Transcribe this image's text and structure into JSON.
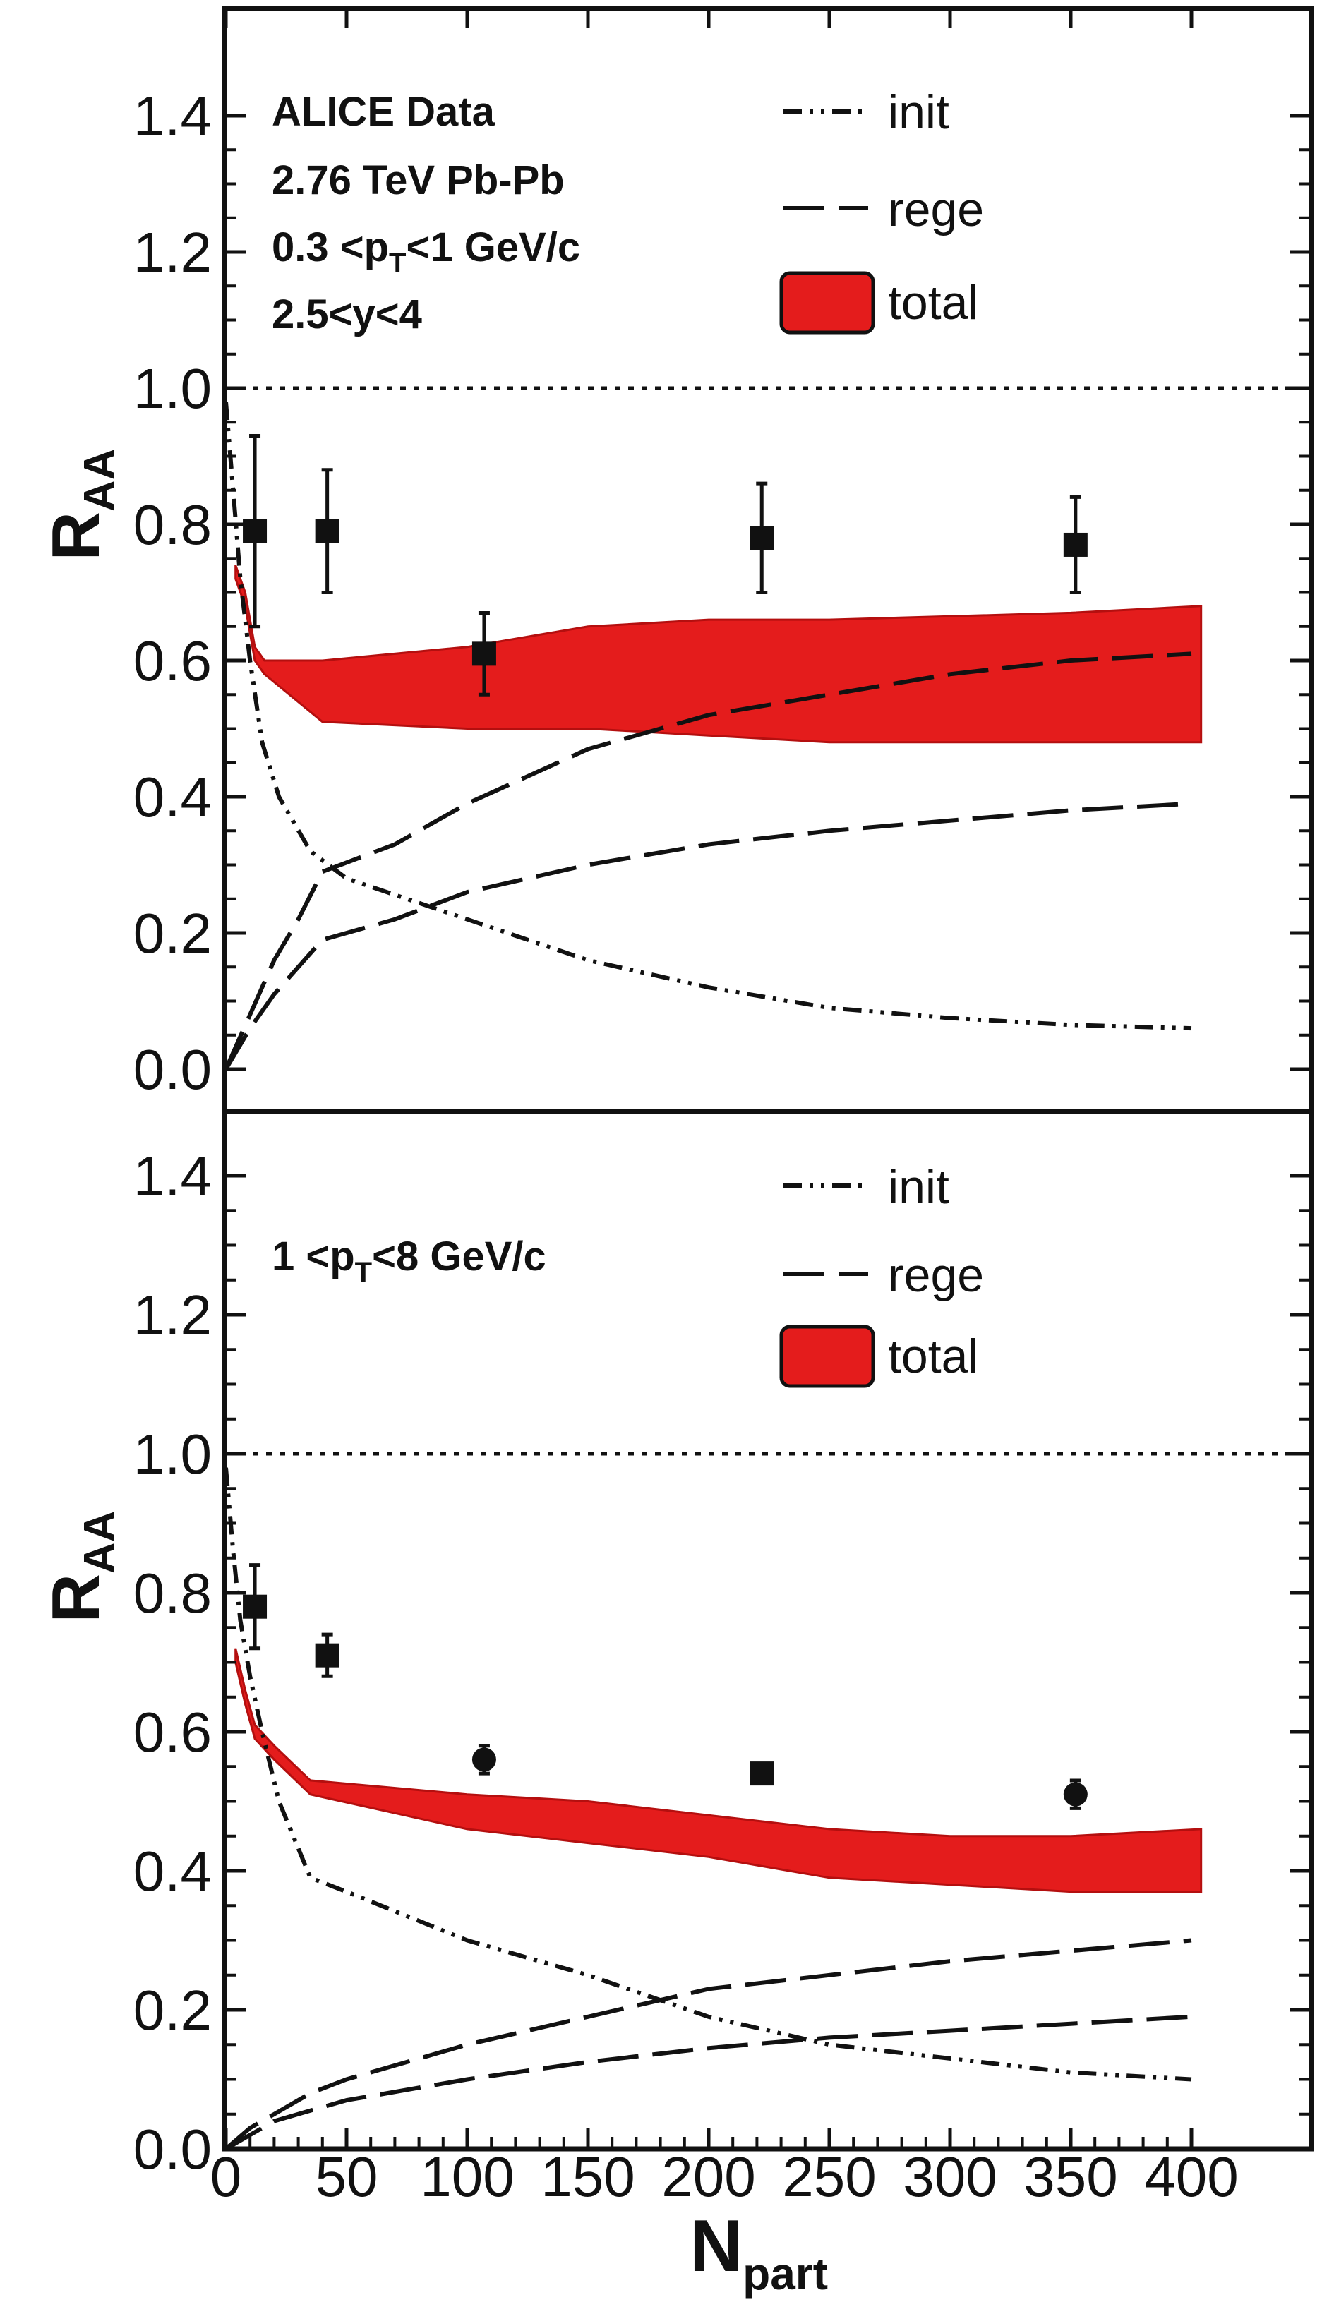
{
  "colors": {
    "band": "#e41c1c",
    "band_edge": "#b40f0f",
    "line": "#111111",
    "frame": "#111111"
  },
  "chart_data": [
    {
      "type": "line",
      "panel": "top",
      "info_lines": [
        "ALICE Data",
        "2.76 TeV Pb-Pb",
        "0.3 <p",
        "T",
        "<1 GeV/c",
        "2.5<y<4"
      ],
      "ylabel_main": "R",
      "ylabel_sub": "AA",
      "xlim": [
        0,
        440
      ],
      "ylim": [
        0,
        1.5
      ],
      "yticks": [
        0.0,
        0.2,
        0.4,
        0.6,
        0.8,
        1.0,
        1.2,
        1.4
      ],
      "ytick_labels": [
        "0.0",
        "0.2",
        "0.4",
        "0.6",
        "0.8",
        "1.0",
        "1.2",
        "1.4"
      ],
      "legend": {
        "init": "init",
        "rege": "rege",
        "total": "total"
      },
      "reference_line": 1.0,
      "init": [
        [
          0,
          0.98
        ],
        [
          3,
          0.85
        ],
        [
          6,
          0.72
        ],
        [
          10,
          0.6
        ],
        [
          15,
          0.48
        ],
        [
          22,
          0.4
        ],
        [
          35,
          0.32
        ],
        [
          50,
          0.28
        ],
        [
          100,
          0.22
        ],
        [
          150,
          0.16
        ],
        [
          200,
          0.12
        ],
        [
          250,
          0.09
        ],
        [
          300,
          0.075
        ],
        [
          350,
          0.065
        ],
        [
          400,
          0.06
        ]
      ],
      "rege_upper": [
        [
          0,
          0.0
        ],
        [
          10,
          0.08
        ],
        [
          20,
          0.16
        ],
        [
          30,
          0.22
        ],
        [
          40,
          0.29
        ],
        [
          70,
          0.33
        ],
        [
          100,
          0.39
        ],
        [
          150,
          0.47
        ],
        [
          200,
          0.52
        ],
        [
          250,
          0.55
        ],
        [
          300,
          0.58
        ],
        [
          350,
          0.6
        ],
        [
          400,
          0.61
        ]
      ],
      "rege_lower": [
        [
          0,
          0.0
        ],
        [
          10,
          0.06
        ],
        [
          20,
          0.11
        ],
        [
          30,
          0.15
        ],
        [
          40,
          0.19
        ],
        [
          70,
          0.22
        ],
        [
          100,
          0.26
        ],
        [
          150,
          0.3
        ],
        [
          200,
          0.33
        ],
        [
          250,
          0.35
        ],
        [
          300,
          0.365
        ],
        [
          350,
          0.38
        ],
        [
          400,
          0.39
        ]
      ],
      "total_upper": [
        [
          4,
          0.74
        ],
        [
          8,
          0.7
        ],
        [
          12,
          0.62
        ],
        [
          16,
          0.6
        ],
        [
          40,
          0.6
        ],
        [
          100,
          0.62
        ],
        [
          150,
          0.65
        ],
        [
          200,
          0.66
        ],
        [
          250,
          0.66
        ],
        [
          300,
          0.665
        ],
        [
          350,
          0.67
        ],
        [
          404,
          0.68
        ]
      ],
      "total_lower": [
        [
          4,
          0.72
        ],
        [
          8,
          0.68
        ],
        [
          12,
          0.6
        ],
        [
          16,
          0.58
        ],
        [
          40,
          0.51
        ],
        [
          100,
          0.5
        ],
        [
          150,
          0.5
        ],
        [
          200,
          0.49
        ],
        [
          250,
          0.48
        ],
        [
          300,
          0.48
        ],
        [
          350,
          0.48
        ],
        [
          404,
          0.48
        ]
      ],
      "data_points": [
        {
          "x": 12,
          "y": 0.79,
          "err": 0.14,
          "marker": "square"
        },
        {
          "x": 42,
          "y": 0.79,
          "err": 0.09,
          "marker": "square"
        },
        {
          "x": 107,
          "y": 0.61,
          "err": 0.06,
          "marker": "square"
        },
        {
          "x": 222,
          "y": 0.78,
          "err": 0.08,
          "marker": "square"
        },
        {
          "x": 352,
          "y": 0.77,
          "err": 0.07,
          "marker": "square"
        }
      ]
    },
    {
      "type": "line",
      "panel": "bottom",
      "info_lines": [
        "1 <p",
        "T",
        "<8 GeV/c"
      ],
      "ylabel_main": "R",
      "ylabel_sub": "AA",
      "xlabel_main": "N",
      "xlabel_sub": "part",
      "xlim": [
        0,
        440
      ],
      "ylim": [
        0,
        1.5
      ],
      "xticks": [
        0,
        50,
        100,
        150,
        200,
        250,
        300,
        350,
        400
      ],
      "xtick_labels": [
        "0",
        "50",
        "100",
        "150",
        "200",
        "250",
        "300",
        "350",
        "400"
      ],
      "yticks": [
        0.0,
        0.2,
        0.4,
        0.6,
        0.8,
        1.0,
        1.2,
        1.4
      ],
      "ytick_labels": [
        "0.0",
        "0.2",
        "0.4",
        "0.6",
        "0.8",
        "1.0",
        "1.2",
        "1.4"
      ],
      "legend": {
        "init": "init",
        "rege": "rege",
        "total": "total"
      },
      "reference_line": 1.0,
      "init": [
        [
          0,
          0.98
        ],
        [
          3,
          0.86
        ],
        [
          6,
          0.76
        ],
        [
          10,
          0.68
        ],
        [
          15,
          0.6
        ],
        [
          22,
          0.5
        ],
        [
          35,
          0.39
        ],
        [
          50,
          0.37
        ],
        [
          100,
          0.3
        ],
        [
          150,
          0.25
        ],
        [
          200,
          0.19
        ],
        [
          250,
          0.15
        ],
        [
          300,
          0.13
        ],
        [
          350,
          0.11
        ],
        [
          400,
          0.1
        ]
      ],
      "rege_upper": [
        [
          0,
          0.0
        ],
        [
          10,
          0.03
        ],
        [
          20,
          0.05
        ],
        [
          35,
          0.08
        ],
        [
          50,
          0.1
        ],
        [
          100,
          0.15
        ],
        [
          150,
          0.19
        ],
        [
          200,
          0.23
        ],
        [
          250,
          0.25
        ],
        [
          300,
          0.27
        ],
        [
          350,
          0.285
        ],
        [
          400,
          0.3
        ]
      ],
      "rege_lower": [
        [
          0,
          0.0
        ],
        [
          10,
          0.02
        ],
        [
          20,
          0.04
        ],
        [
          35,
          0.055
        ],
        [
          50,
          0.07
        ],
        [
          100,
          0.1
        ],
        [
          150,
          0.125
        ],
        [
          200,
          0.145
        ],
        [
          250,
          0.16
        ],
        [
          300,
          0.17
        ],
        [
          350,
          0.18
        ],
        [
          400,
          0.19
        ]
      ],
      "total_upper": [
        [
          4,
          0.72
        ],
        [
          8,
          0.66
        ],
        [
          12,
          0.61
        ],
        [
          20,
          0.58
        ],
        [
          35,
          0.53
        ],
        [
          100,
          0.51
        ],
        [
          150,
          0.5
        ],
        [
          200,
          0.48
        ],
        [
          250,
          0.46
        ],
        [
          300,
          0.45
        ],
        [
          350,
          0.45
        ],
        [
          404,
          0.46
        ]
      ],
      "total_lower": [
        [
          4,
          0.7
        ],
        [
          8,
          0.64
        ],
        [
          12,
          0.59
        ],
        [
          20,
          0.56
        ],
        [
          35,
          0.51
        ],
        [
          100,
          0.46
        ],
        [
          150,
          0.44
        ],
        [
          200,
          0.42
        ],
        [
          250,
          0.39
        ],
        [
          300,
          0.38
        ],
        [
          350,
          0.37
        ],
        [
          404,
          0.37
        ]
      ],
      "data_points": [
        {
          "x": 12,
          "y": 0.78,
          "err": 0.06,
          "marker": "square"
        },
        {
          "x": 42,
          "y": 0.71,
          "err": 0.03,
          "marker": "square"
        },
        {
          "x": 107,
          "y": 0.56,
          "err": 0.02,
          "marker": "circle"
        },
        {
          "x": 222,
          "y": 0.54,
          "err": 0.0,
          "marker": "square"
        },
        {
          "x": 352,
          "y": 0.51,
          "err": 0.02,
          "marker": "circle"
        }
      ]
    }
  ]
}
